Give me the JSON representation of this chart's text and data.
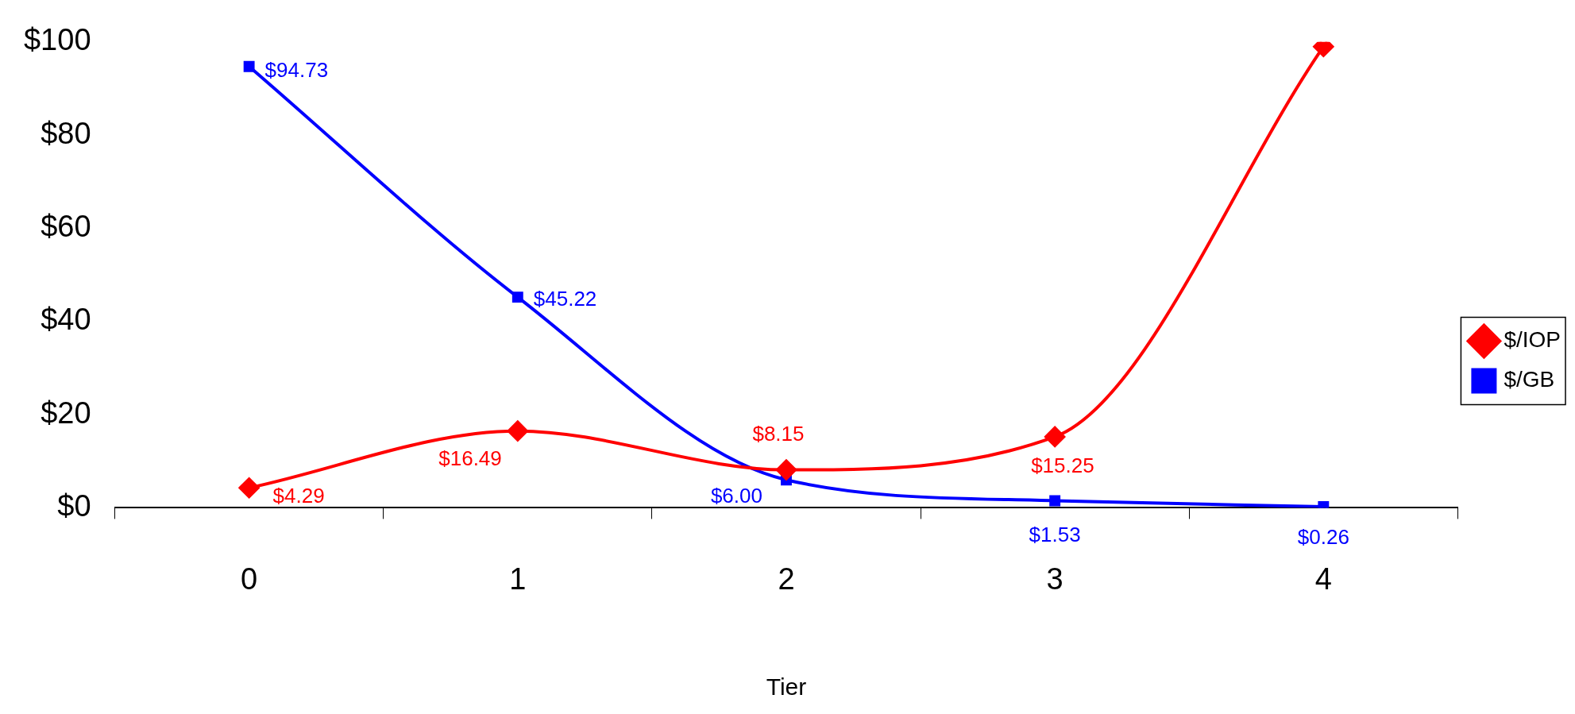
{
  "chart_data": {
    "type": "line",
    "xlabel": "Tier",
    "categories": [
      "0",
      "1",
      "2",
      "3",
      "4"
    ],
    "series": [
      {
        "name": "$/IOP",
        "color": "#ff0000",
        "marker": "diamond",
        "values": [
          4.29,
          16.49,
          8.15,
          15.25,
          99
        ],
        "value_labels": [
          "$4.29",
          "$16.49",
          "$8.15",
          "$15.25",
          null
        ]
      },
      {
        "name": "$/GB",
        "color": "#0000ff",
        "marker": "square",
        "values": [
          94.73,
          45.22,
          6.0,
          1.53,
          0.26
        ],
        "value_labels": [
          "$94.73",
          "$45.22",
          "$6.00",
          "$1.53",
          "$0.26"
        ]
      }
    ],
    "ylim": [
      0,
      100
    ],
    "yticks": [
      {
        "value": 0,
        "label": "$0"
      },
      {
        "value": 20,
        "label": "$20"
      },
      {
        "value": 40,
        "label": "$40"
      },
      {
        "value": 60,
        "label": "$60"
      },
      {
        "value": 80,
        "label": "$80"
      },
      {
        "value": 100,
        "label": "$100"
      }
    ],
    "grid": false,
    "legend": "right",
    "line_style": "solid"
  }
}
